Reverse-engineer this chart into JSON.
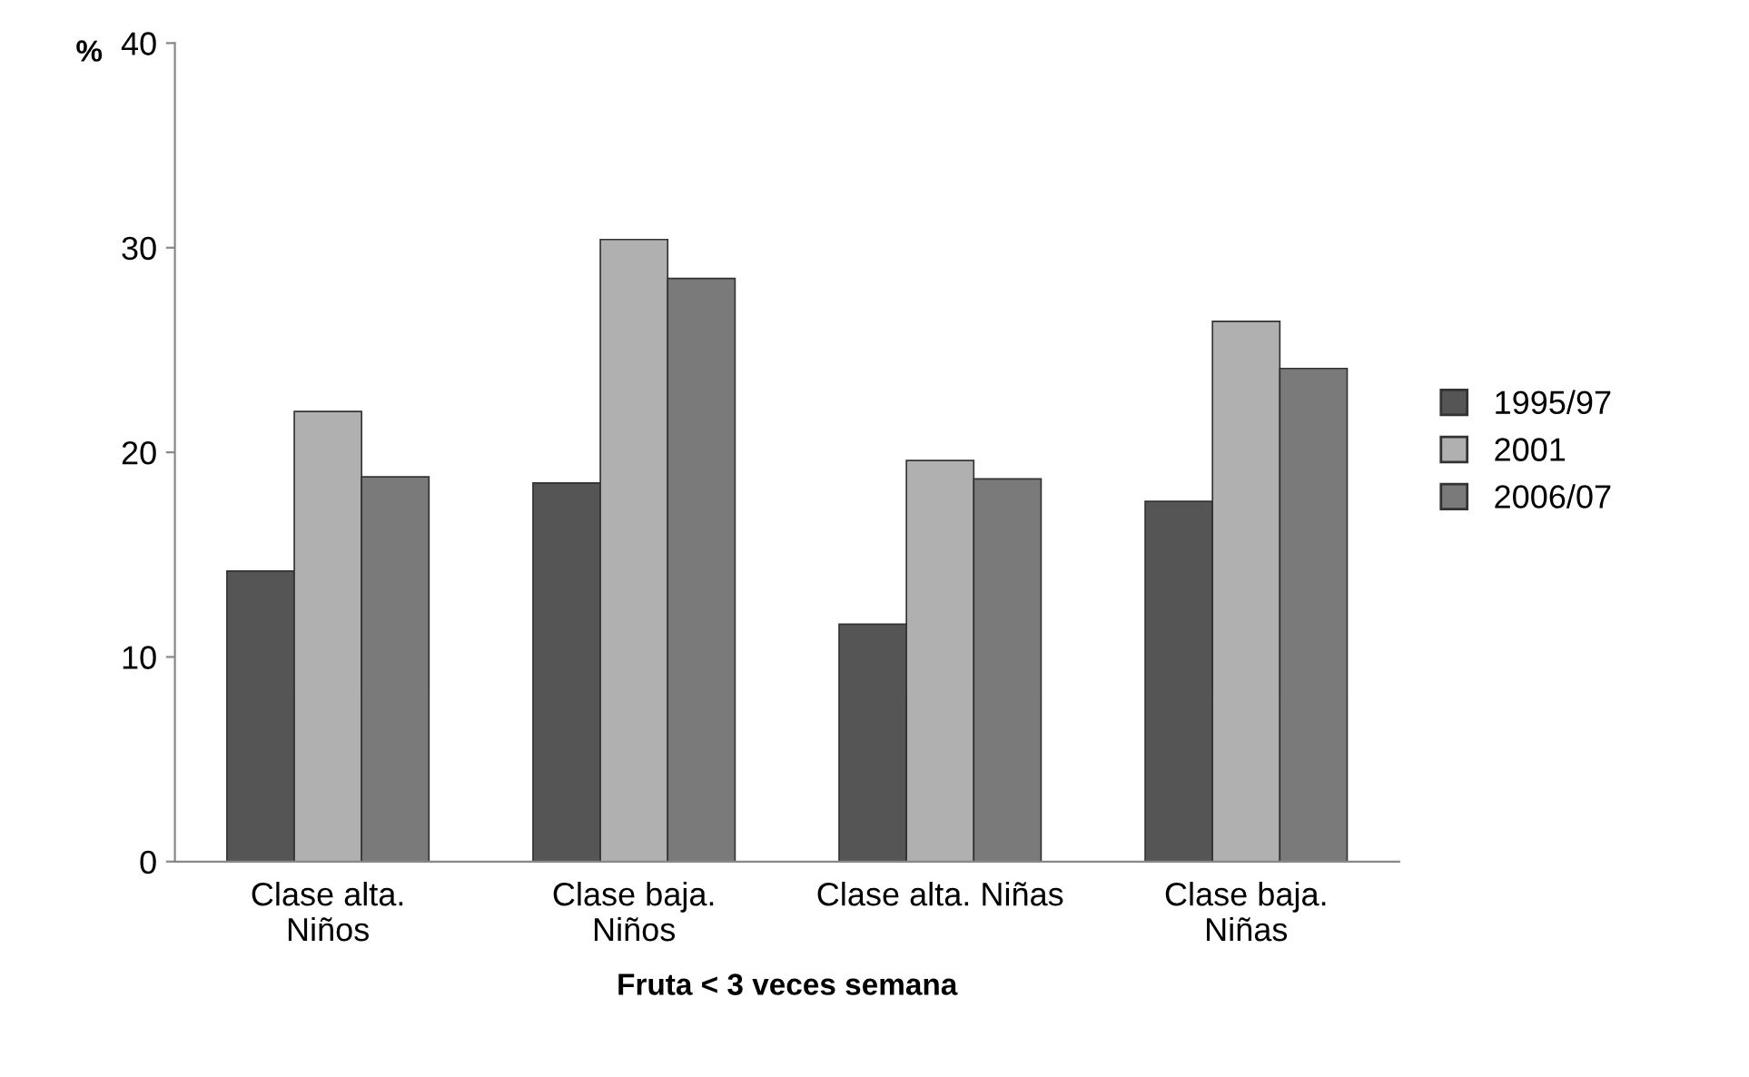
{
  "chart_data": {
    "type": "bar",
    "categories": [
      "Clase alta.\nNiños",
      "Clase baja.\nNiños",
      "Clase alta. Niñas",
      "Clase baja.\nNiñas"
    ],
    "series": [
      {
        "name": "1995/97",
        "color": "#555555",
        "values": [
          14.2,
          18.5,
          11.6,
          17.6
        ]
      },
      {
        "name": "2001",
        "color": "#b0b0b0",
        "values": [
          22.0,
          30.4,
          19.6,
          26.4
        ]
      },
      {
        "name": "2006/07",
        "color": "#7a7a7a",
        "values": [
          18.8,
          28.5,
          18.7,
          24.1
        ]
      }
    ],
    "xlabel": "Fruta < 3 veces semana",
    "ylabel": "%",
    "ylim": [
      0,
      40
    ],
    "yticks": [
      0,
      10,
      20,
      30,
      40
    ],
    "grid": false,
    "legend": "right"
  }
}
